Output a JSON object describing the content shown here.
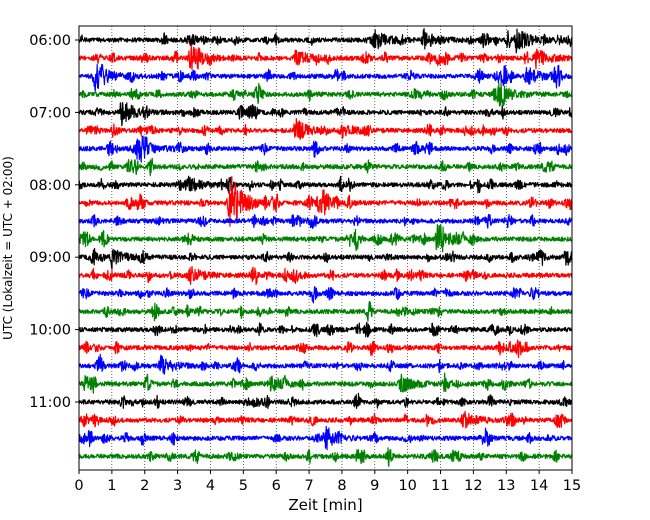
{
  "chart_data": {
    "type": "line",
    "title": "",
    "xlabel": "Zeit  [min]",
    "ylabel": "UTC (Lokalzeit = UTC + 02:00)",
    "xlim": [
      0,
      15
    ],
    "x_ticks": [
      "0",
      "1",
      "2",
      "3",
      "4",
      "5",
      "6",
      "7",
      "8",
      "9",
      "10",
      "11",
      "12",
      "13",
      "14",
      "15"
    ],
    "y_ticks": [
      {
        "label": "06:00",
        "row": 0
      },
      {
        "label": "07:00",
        "row": 4
      },
      {
        "label": "08:00",
        "row": 8
      },
      {
        "label": "09:00",
        "row": 12
      },
      {
        "label": "10:00",
        "row": 16
      },
      {
        "label": "11:00",
        "row": 20
      }
    ],
    "grid": {
      "vertical": true,
      "style": "dotted"
    },
    "row_minutes": 15,
    "rows": 24,
    "start_time": "06:00",
    "colors": [
      "#000000",
      "#ff0000",
      "#0000ff",
      "#008000"
    ],
    "events": [
      {
        "row": 0,
        "minute": 9.0,
        "amp": 0.35
      },
      {
        "row": 0,
        "minute": 10.5,
        "amp": 0.35
      },
      {
        "row": 0,
        "minute": 13.3,
        "amp": 0.45
      },
      {
        "row": 1,
        "minute": 3.4,
        "amp": 0.45
      },
      {
        "row": 1,
        "minute": 6.6,
        "amp": 0.3
      },
      {
        "row": 1,
        "minute": 13.9,
        "amp": 0.35
      },
      {
        "row": 2,
        "minute": 0.5,
        "amp": 0.5
      },
      {
        "row": 2,
        "minute": 13.6,
        "amp": 0.35
      },
      {
        "row": 3,
        "minute": 12.8,
        "amp": 0.35
      },
      {
        "row": 4,
        "minute": 1.3,
        "amp": 0.45
      },
      {
        "row": 5,
        "minute": 6.6,
        "amp": 0.4
      },
      {
        "row": 5,
        "minute": 8.0,
        "amp": 0.25
      },
      {
        "row": 6,
        "minute": 1.8,
        "amp": 0.4
      },
      {
        "row": 8,
        "minute": 3.3,
        "amp": 0.3
      },
      {
        "row": 9,
        "minute": 4.6,
        "amp": 1.1
      },
      {
        "row": 9,
        "minute": 7.3,
        "amp": 0.35
      },
      {
        "row": 11,
        "minute": 10.9,
        "amp": 0.5
      },
      {
        "row": 12,
        "minute": 1.0,
        "amp": 0.3
      },
      {
        "row": 12,
        "minute": 14.8,
        "amp": 0.3
      },
      {
        "row": 13,
        "minute": 3.4,
        "amp": 0.3
      },
      {
        "row": 18,
        "minute": 2.5,
        "amp": 0.35
      },
      {
        "row": 19,
        "minute": 5.8,
        "amp": 0.3
      },
      {
        "row": 19,
        "minute": 9.8,
        "amp": 0.3
      },
      {
        "row": 21,
        "minute": 11.7,
        "amp": 0.3
      },
      {
        "row": 22,
        "minute": 7.5,
        "amp": 0.3
      }
    ]
  }
}
